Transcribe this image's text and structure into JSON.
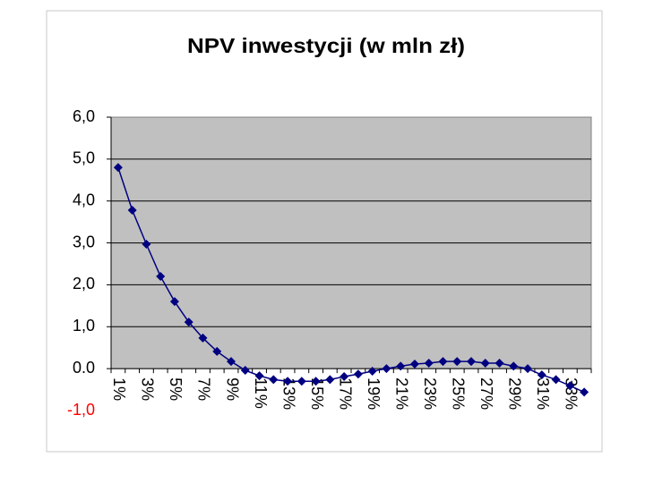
{
  "chart_data": {
    "type": "line",
    "title": "NPV inwestycji (w mln zł)",
    "categories": [
      "1%",
      null,
      "3%",
      null,
      "5%",
      null,
      "7%",
      null,
      "9%",
      null,
      "11%",
      null,
      "13%",
      null,
      "15%",
      null,
      "17%",
      null,
      "19%",
      null,
      "21%",
      null,
      "23%",
      null,
      "25%",
      null,
      "27%",
      null,
      "29%",
      null,
      "31%",
      null,
      "33%",
      null
    ],
    "series": [
      {
        "name": "NPV",
        "color": "#000080",
        "values": [
          4.8,
          3.78,
          2.97,
          2.2,
          1.6,
          1.11,
          0.73,
          0.41,
          0.17,
          -0.04,
          -0.17,
          -0.26,
          -0.3,
          -0.3,
          -0.3,
          -0.26,
          -0.19,
          -0.13,
          -0.06,
          0.0,
          0.06,
          0.11,
          0.13,
          0.17,
          0.17,
          0.17,
          0.13,
          0.13,
          0.06,
          0.0,
          -0.15,
          -0.26,
          -0.41,
          -0.56
        ]
      }
    ],
    "ylim": [
      -1,
      6
    ],
    "yticks": [
      {
        "value": 6,
        "label": "6,0"
      },
      {
        "value": 5,
        "label": "5,0"
      },
      {
        "value": 4,
        "label": "4,0"
      },
      {
        "value": 3,
        "label": "3,0"
      },
      {
        "value": 2,
        "label": "2,0"
      },
      {
        "value": 1,
        "label": "1,0"
      },
      {
        "value": 0,
        "label": "0.0"
      },
      {
        "value": -1,
        "label": "-1,0"
      }
    ],
    "negative_tick_color": "#ff0000",
    "grid": true,
    "plot_background": "#c0c0c0"
  }
}
